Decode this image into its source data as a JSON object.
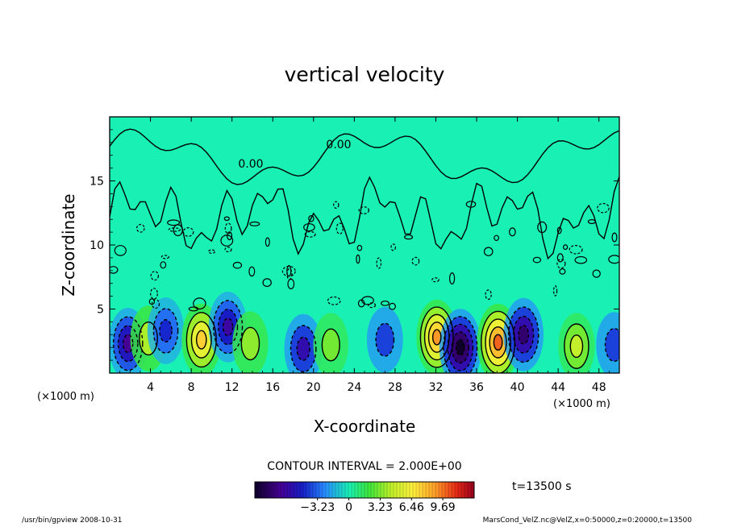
{
  "chart_data": {
    "type": "heatmap",
    "title": "vertical velocity",
    "xlabel": "X-coordinate",
    "ylabel": "Z-coordinate",
    "x_unit_left": "(×1000 m)",
    "x_unit_right": "(×1000 m)",
    "xlim": [
      0,
      50
    ],
    "ylim": [
      0,
      20
    ],
    "x_ticks": [
      4,
      8,
      12,
      16,
      20,
      24,
      28,
      32,
      36,
      40,
      44,
      48
    ],
    "x_tick_labels": [
      "4",
      "8",
      "12",
      "16",
      "20",
      "24",
      "28",
      "32",
      "36",
      "40",
      "44",
      "48"
    ],
    "y_ticks": [
      5,
      10,
      15
    ],
    "y_tick_labels": [
      "5",
      "10",
      "15"
    ],
    "contour_labels": [
      "0.00",
      "0.00"
    ],
    "contour_interval_text": "CONTOUR INTERVAL = 2.000E+00",
    "time_text": "t=13500 s",
    "colorbar": {
      "min": -9.69,
      "max": 12.92,
      "tick_values": [
        -3.23,
        0,
        3.23,
        6.46,
        9.69
      ],
      "tick_labels": [
        "−3.23",
        "0",
        "3.23",
        "6.46",
        "9.69"
      ]
    },
    "cells": [
      {
        "x": 1.8,
        "z": 2.3,
        "w": -7.0
      },
      {
        "x": 3.8,
        "z": 2.7,
        "w": 4.0
      },
      {
        "x": 5.5,
        "z": 3.3,
        "w": -4.5
      },
      {
        "x": 9.0,
        "z": 2.6,
        "w": 7.5
      },
      {
        "x": 11.6,
        "z": 3.6,
        "w": -6.5
      },
      {
        "x": 13.8,
        "z": 2.3,
        "w": 3.5
      },
      {
        "x": 19.0,
        "z": 1.9,
        "w": -6.0
      },
      {
        "x": 21.7,
        "z": 2.2,
        "w": 3.0
      },
      {
        "x": 27.0,
        "z": 2.6,
        "w": -4.0
      },
      {
        "x": 32.1,
        "z": 2.8,
        "w": 9.0
      },
      {
        "x": 34.4,
        "z": 2.0,
        "w": -10.0
      },
      {
        "x": 38.1,
        "z": 2.4,
        "w": 10.0
      },
      {
        "x": 40.6,
        "z": 3.0,
        "w": -8.0
      },
      {
        "x": 45.8,
        "z": 2.1,
        "w": 4.5
      },
      {
        "x": 49.5,
        "z": 2.2,
        "w": -4.0
      }
    ]
  },
  "footer": {
    "left": "/usr/bin/gpview   2008-10-31",
    "right": "MarsCond_VelZ.nc@VelZ,x=0:50000,z=0:20000,t=13500"
  }
}
